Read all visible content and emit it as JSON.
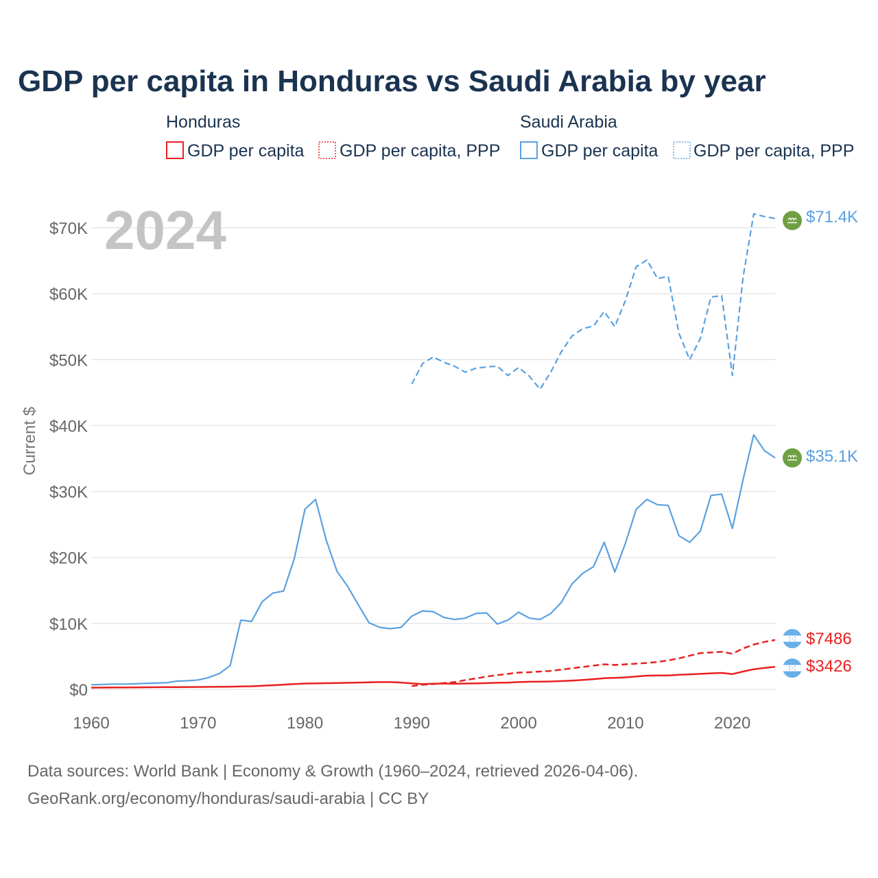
{
  "colors": {
    "honduras": "#e8201f",
    "saudi": "#5aa0e0",
    "title": "#1a3350",
    "saudi_flag": "#6fa043",
    "honduras_flag": "#6aaee6"
  },
  "icons": {
    "saudi_marker": "saudi-arabia-flag-icon",
    "honduras_marker": "honduras-flag-icon"
  },
  "legend": {
    "honduras_label": "Honduras",
    "saudi_label": "Saudi Arabia",
    "gdp_label": "GDP per capita",
    "ppp_label": "GDP per capita, PPP"
  },
  "year_display": "2024",
  "end_labels": {
    "saudi_ppp": "$71.4K",
    "saudi_gdp": "$35.1K",
    "honduras_ppp": "$7486",
    "honduras_gdp": "$3426"
  },
  "source": {
    "line1": "Data sources: World Bank | Economy & Growth (1960–2024, retrieved 2026-04-06).",
    "line2": "GeoRank.org/economy/honduras/saudi-arabia | CC BY"
  },
  "chart_data": {
    "type": "line",
    "title": "GDP per capita in Honduras vs Saudi Arabia by year",
    "xlabel": "",
    "ylabel": "Current $",
    "xlim": [
      1960,
      2024
    ],
    "ylim": [
      0,
      70000
    ],
    "x_ticks": [
      1960,
      1970,
      1980,
      1990,
      2000,
      2010,
      2020
    ],
    "x_tick_labels": [
      "1960",
      "1970",
      "1980",
      "1990",
      "2000",
      "2010",
      "2020"
    ],
    "y_ticks": [
      0,
      10000,
      20000,
      30000,
      40000,
      50000,
      60000,
      70000
    ],
    "y_tick_labels": [
      "$0",
      "$10K",
      "$20K",
      "$30K",
      "$40K",
      "$50K",
      "$60K",
      "$70K"
    ],
    "series": [
      {
        "name": "Saudi Arabia GDP per capita",
        "country": "Saudi Arabia",
        "style": "solid",
        "start_year": 1960,
        "values": [
          700,
          750,
          800,
          800,
          830,
          900,
          950,
          1000,
          1250,
          1300,
          1420,
          1800,
          2400,
          3600,
          10500,
          10300,
          13300,
          14600,
          14900,
          19800,
          27300,
          28800,
          22600,
          17900,
          15600,
          12800,
          10100,
          9400,
          9200,
          9400,
          11100,
          11900,
          11800,
          10900,
          10600,
          10800,
          11500,
          11600,
          9900,
          10500,
          11700,
          10800,
          10600,
          11500,
          13200,
          16000,
          17600,
          18600,
          22300,
          17800,
          22200,
          27300,
          28800,
          28000,
          27900,
          23300,
          22300,
          24000,
          29400,
          29600,
          24400,
          31800,
          38600,
          36200,
          35100
        ]
      },
      {
        "name": "Saudi Arabia GDP per capita, PPP",
        "country": "Saudi Arabia",
        "style": "dashed",
        "start_year": 1990,
        "values": [
          46300,
          49400,
          50400,
          49600,
          49000,
          48100,
          48700,
          48900,
          49000,
          47600,
          48800,
          47500,
          45500,
          48100,
          51200,
          53600,
          54700,
          55100,
          57300,
          55000,
          59000,
          64100,
          65100,
          62300,
          62600,
          54000,
          50000,
          53200,
          59500,
          59700,
          47600,
          62500,
          72100,
          71700,
          71400
        ]
      },
      {
        "name": "Honduras GDP per capita",
        "country": "Honduras",
        "style": "solid",
        "start_year": 1960,
        "values": [
          260,
          270,
          280,
          290,
          300,
          310,
          320,
          330,
          340,
          350,
          360,
          370,
          380,
          410,
          440,
          470,
          540,
          620,
          720,
          800,
          880,
          920,
          940,
          960,
          1000,
          1030,
          1070,
          1100,
          1100,
          1030,
          900,
          800,
          850,
          880,
          850,
          880,
          900,
          950,
          1000,
          1030,
          1100,
          1150,
          1170,
          1200,
          1260,
          1330,
          1430,
          1550,
          1700,
          1750,
          1820,
          1960,
          2080,
          2100,
          2100,
          2200,
          2280,
          2350,
          2430,
          2500,
          2320,
          2700,
          3050,
          3250,
          3426
        ]
      },
      {
        "name": "Honduras GDP per capita, PPP",
        "country": "Honduras",
        "style": "dashed",
        "start_year": 1990,
        "values": [
          500,
          700,
          800,
          950,
          1100,
          1400,
          1650,
          1950,
          2150,
          2350,
          2550,
          2600,
          2700,
          2800,
          3000,
          3200,
          3400,
          3600,
          3800,
          3700,
          3800,
          3900,
          4000,
          4150,
          4400,
          4700,
          5100,
          5500,
          5600,
          5700,
          5400,
          6200,
          6800,
          7200,
          7486
        ]
      }
    ]
  }
}
